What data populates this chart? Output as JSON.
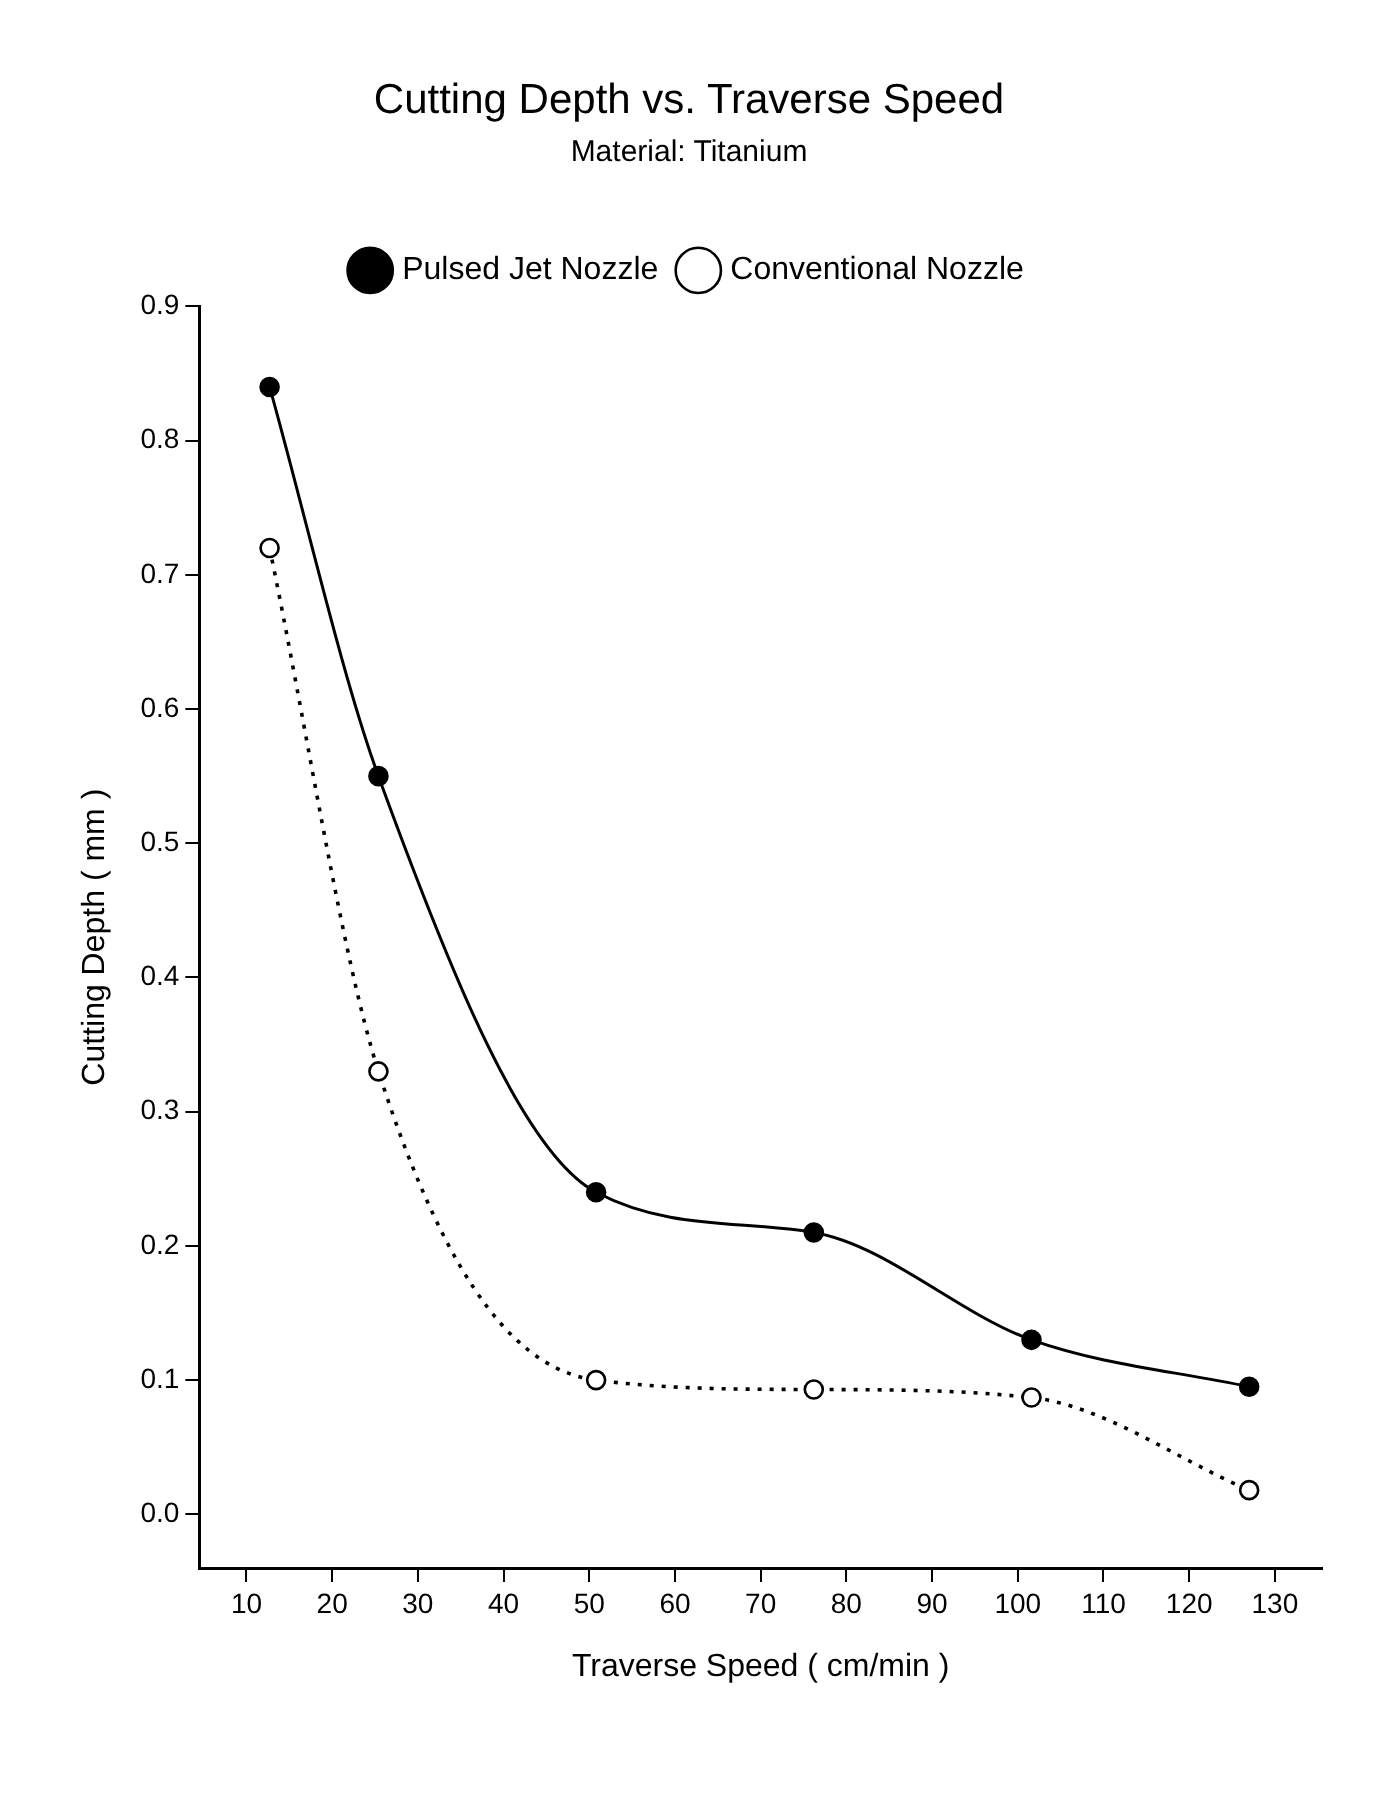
{
  "chart_data": {
    "type": "line",
    "title": "Cutting Depth vs. Traverse Speed",
    "subtitle": "Material: Titanium",
    "xlabel": "Traverse Speed ( cm/min )",
    "ylabel": "Cutting Depth ( mm )",
    "x": [
      12.7,
      25.4,
      50.8,
      76.2,
      101.6,
      127
    ],
    "series": [
      {
        "name": "Pulsed Jet Nozzle",
        "color": "#000000",
        "values": [
          0.84,
          0.55,
          0.24,
          0.21,
          0.13,
          0.095
        ],
        "line_style": "solid"
      },
      {
        "name": "Conventional Nozzle",
        "color": "#000000",
        "values": [
          0.72,
          0.33,
          0.1,
          0.093,
          0.087,
          0.018
        ],
        "line_style": "dotted"
      }
    ],
    "xlim": [
      4.5,
      135.5
    ],
    "xticks": [
      10,
      20,
      30,
      40,
      50,
      60,
      70,
      80,
      90,
      100,
      110,
      120,
      130
    ],
    "ylim": [
      -0.04,
      0.9
    ],
    "yticks": [
      {
        "value": 0,
        "label": "0.0"
      },
      0.1,
      0.2,
      0.3,
      0.4,
      0.5,
      0.6,
      0.7,
      0.8,
      0.9
    ],
    "grid": false,
    "legend": "top",
    "marker": "circle"
  }
}
